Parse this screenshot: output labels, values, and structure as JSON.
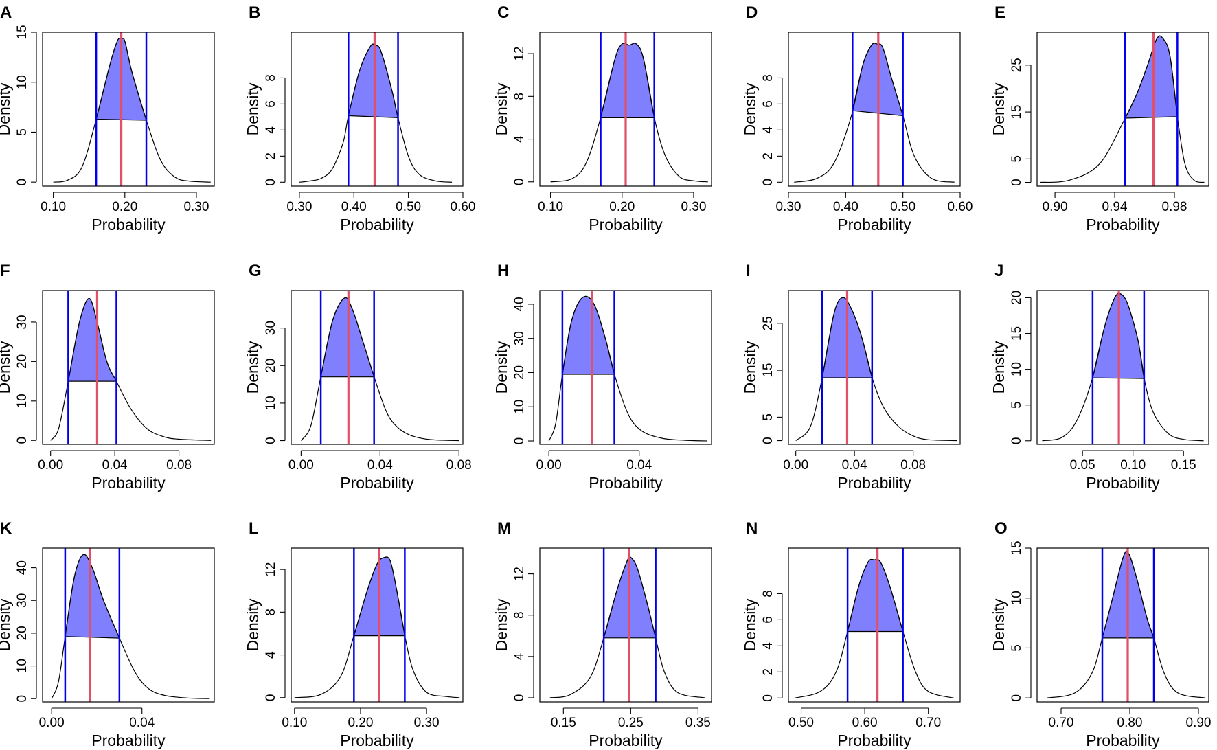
{
  "chart_data": [
    {
      "panel": "A",
      "type": "area",
      "xlabel": "Probability",
      "ylabel": "Density",
      "xlim": [
        0.085,
        0.325
      ],
      "ylim": [
        -0.4,
        15
      ],
      "xticks": [
        0.1,
        0.2,
        0.3
      ],
      "xtick_labels": [
        "0.10",
        "0.20",
        "0.30"
      ],
      "yticks": [
        0,
        5,
        10,
        15
      ],
      "ytick_labels": [
        "0",
        "5",
        "10",
        "15"
      ],
      "x": [
        0.1,
        0.12,
        0.14,
        0.16,
        0.18,
        0.19,
        0.195,
        0.2,
        0.21,
        0.23,
        0.25,
        0.27,
        0.29,
        0.32
      ],
      "y": [
        0,
        0.2,
        1.5,
        6.3,
        12,
        14.2,
        14.3,
        14.1,
        11,
        6.2,
        2.2,
        0.5,
        0.1,
        0
      ],
      "hpd": [
        0.16,
        0.23
      ],
      "mean": 0.195
    },
    {
      "panel": "B",
      "type": "area",
      "xlabel": "Probability",
      "ylabel": "Density",
      "xlim": [
        0.285,
        0.6
      ],
      "ylim": [
        -0.3,
        11.5
      ],
      "xticks": [
        0.3,
        0.4,
        0.5,
        0.6
      ],
      "xtick_labels": [
        "0.30",
        "0.40",
        "0.50",
        "0.60"
      ],
      "yticks": [
        0,
        2,
        4,
        6,
        8
      ],
      "ytick_labels": [
        "0",
        "2",
        "4",
        "6",
        "8"
      ],
      "x": [
        0.3,
        0.32,
        0.34,
        0.36,
        0.38,
        0.39,
        0.41,
        0.43,
        0.44,
        0.45,
        0.47,
        0.48,
        0.5,
        0.52,
        0.55,
        0.58
      ],
      "y": [
        0,
        0.1,
        0.3,
        1,
        3,
        5.1,
        8.5,
        10.4,
        10.5,
        10,
        7,
        5.1,
        2,
        0.6,
        0.1,
        0
      ],
      "hpd": [
        0.39,
        0.481
      ],
      "mean": 0.438
    },
    {
      "panel": "C",
      "type": "area",
      "xlabel": "Probability",
      "ylabel": "Density",
      "xlim": [
        0.085,
        0.325
      ],
      "ylim": [
        -0.4,
        14
      ],
      "xticks": [
        0.1,
        0.2,
        0.3
      ],
      "xtick_labels": [
        "0.10",
        "0.20",
        "0.30"
      ],
      "yticks": [
        0,
        4,
        8,
        12
      ],
      "ytick_labels": [
        "0",
        "4",
        "8",
        "12"
      ],
      "x": [
        0.1,
        0.13,
        0.15,
        0.17,
        0.19,
        0.2,
        0.21,
        0.22,
        0.23,
        0.245,
        0.26,
        0.28,
        0.3,
        0.32
      ],
      "y": [
        0,
        0.3,
        1.8,
        6,
        11.5,
        12.9,
        12.8,
        12.9,
        11.5,
        6,
        2.5,
        0.5,
        0.1,
        0
      ],
      "hpd": [
        0.17,
        0.245
      ],
      "mean": 0.205
    },
    {
      "panel": "D",
      "type": "area",
      "xlabel": "Probability",
      "ylabel": "Density",
      "xlim": [
        0.3,
        0.6
      ],
      "ylim": [
        -0.3,
        11.5
      ],
      "xticks": [
        0.3,
        0.4,
        0.5,
        0.6
      ],
      "xtick_labels": [
        "0.30",
        "0.40",
        "0.50",
        "0.60"
      ],
      "yticks": [
        0,
        2,
        4,
        6,
        8
      ],
      "ytick_labels": [
        "0",
        "2",
        "4",
        "6",
        "8"
      ],
      "x": [
        0.31,
        0.35,
        0.38,
        0.41,
        0.43,
        0.445,
        0.455,
        0.465,
        0.48,
        0.5,
        0.52,
        0.55,
        0.59
      ],
      "y": [
        0,
        0.3,
        1.5,
        5.1,
        9,
        10.5,
        10.6,
        10.3,
        8,
        5.1,
        2,
        0.3,
        0
      ],
      "hpd": [
        0.412,
        0.5
      ],
      "mean": 0.457
    },
    {
      "panel": "E",
      "type": "area",
      "xlabel": "Probability",
      "ylabel": "Density",
      "xlim": [
        0.888,
        1.003
      ],
      "ylim": [
        -0.8,
        32
      ],
      "xticks": [
        0.9,
        0.94,
        0.98
      ],
      "xtick_labels": [
        "0.90",
        "0.94",
        "0.98"
      ],
      "yticks": [
        0,
        5,
        15,
        25
      ],
      "ytick_labels": [
        "0",
        "5",
        "15",
        "25"
      ],
      "x": [
        0.89,
        0.91,
        0.93,
        0.947,
        0.955,
        0.962,
        0.968,
        0.972,
        0.977,
        0.982,
        0.987,
        0.993,
        1.0
      ],
      "y": [
        0,
        0.5,
        4,
        13.7,
        19,
        25,
        30.5,
        30.8,
        27,
        14,
        4,
        0.5,
        0
      ],
      "hpd": [
        0.947,
        0.982
      ],
      "mean": 0.966
    },
    {
      "panel": "F",
      "type": "area",
      "xlabel": "Probability",
      "ylabel": "Density",
      "xlim": [
        -0.005,
        0.102
      ],
      "ylim": [
        -1,
        38
      ],
      "xticks": [
        0.0,
        0.04,
        0.08
      ],
      "xtick_labels": [
        "0.00",
        "0.04",
        "0.08"
      ],
      "yticks": [
        0,
        10,
        20,
        30
      ],
      "ytick_labels": [
        "0",
        "10",
        "20",
        "30"
      ],
      "x": [
        0.0,
        0.005,
        0.011,
        0.018,
        0.024,
        0.029,
        0.035,
        0.041,
        0.05,
        0.06,
        0.07,
        0.08,
        0.1
      ],
      "y": [
        0,
        3,
        15,
        30,
        36,
        30,
        20,
        15,
        8,
        3,
        1,
        0.3,
        0
      ],
      "hpd": [
        0.011,
        0.041
      ],
      "mean": 0.029
    },
    {
      "panel": "G",
      "type": "area",
      "xlabel": "Probability",
      "ylabel": "Density",
      "xlim": [
        -0.005,
        0.082
      ],
      "ylim": [
        -1,
        40
      ],
      "xticks": [
        0.0,
        0.04,
        0.08
      ],
      "xtick_labels": [
        "0.00",
        "0.04",
        "0.08"
      ],
      "yticks": [
        0,
        10,
        20,
        30
      ],
      "ytick_labels": [
        "0",
        "10",
        "20",
        "30"
      ],
      "x": [
        0.0,
        0.005,
        0.01,
        0.016,
        0.022,
        0.026,
        0.031,
        0.037,
        0.043,
        0.048,
        0.055,
        0.065,
        0.08
      ],
      "y": [
        0,
        4,
        17,
        32,
        38,
        35,
        27,
        17,
        8,
        4,
        1.5,
        0.3,
        0
      ],
      "hpd": [
        0.01,
        0.037
      ],
      "mean": 0.024
    },
    {
      "panel": "H",
      "type": "area",
      "xlabel": "Probability",
      "ylabel": "Density",
      "xlim": [
        -0.004,
        0.072
      ],
      "ylim": [
        -1,
        44
      ],
      "xticks": [
        0.0,
        0.04
      ],
      "xtick_labels": [
        "0.00",
        "0.04"
      ],
      "yticks": [
        0,
        10,
        20,
        30,
        40
      ],
      "ytick_labels": [
        "0",
        "10",
        "20",
        "30",
        "40"
      ],
      "x": [
        0.0,
        0.003,
        0.006,
        0.01,
        0.015,
        0.02,
        0.025,
        0.029,
        0.035,
        0.041,
        0.05,
        0.06,
        0.07
      ],
      "y": [
        0,
        5,
        19.5,
        35,
        42,
        40,
        30,
        19.5,
        8,
        3,
        0.8,
        0.2,
        0
      ],
      "hpd": [
        0.006,
        0.029
      ],
      "mean": 0.019
    },
    {
      "panel": "I",
      "type": "area",
      "xlabel": "Probability",
      "ylabel": "Density",
      "xlim": [
        -0.005,
        0.112
      ],
      "ylim": [
        -0.8,
        32
      ],
      "xticks": [
        0.0,
        0.04,
        0.08
      ],
      "xtick_labels": [
        "0.00",
        "0.04",
        "0.08"
      ],
      "yticks": [
        0,
        5,
        15,
        25
      ],
      "ytick_labels": [
        "0",
        "5",
        "15",
        "25"
      ],
      "x": [
        0.0,
        0.01,
        0.018,
        0.026,
        0.032,
        0.038,
        0.045,
        0.052,
        0.06,
        0.07,
        0.08,
        0.09,
        0.11
      ],
      "y": [
        0,
        3,
        13.4,
        27,
        30.5,
        28,
        22,
        13.4,
        7,
        3,
        1,
        0.2,
        0
      ],
      "hpd": [
        0.018,
        0.052
      ],
      "mean": 0.035
    },
    {
      "panel": "J",
      "type": "area",
      "xlabel": "Probability",
      "ylabel": "Density",
      "xlim": [
        0.005,
        0.175
      ],
      "ylim": [
        -0.5,
        21
      ],
      "xticks": [
        0.05,
        0.1,
        0.15
      ],
      "xtick_labels": [
        "0.05",
        "0.10",
        "0.15"
      ],
      "yticks": [
        0,
        5,
        10,
        15,
        20
      ],
      "ytick_labels": [
        "0",
        "5",
        "10",
        "15",
        "20"
      ],
      "x": [
        0.01,
        0.03,
        0.045,
        0.06,
        0.072,
        0.082,
        0.088,
        0.095,
        0.105,
        0.111,
        0.12,
        0.135,
        0.15,
        0.17
      ],
      "y": [
        0,
        0.5,
        3,
        8.8,
        16,
        20,
        20.5,
        19,
        14,
        8.7,
        4,
        1,
        0.2,
        0
      ],
      "hpd": [
        0.06,
        0.111
      ],
      "mean": 0.086
    },
    {
      "panel": "K",
      "type": "area",
      "xlabel": "Probability",
      "ylabel": "Density",
      "xlim": [
        -0.004,
        0.072
      ],
      "ylim": [
        -1,
        46
      ],
      "xticks": [
        0.0,
        0.04
      ],
      "xtick_labels": [
        "0.00",
        "0.04"
      ],
      "yticks": [
        0,
        10,
        20,
        30,
        40
      ],
      "ytick_labels": [
        "0",
        "10",
        "20",
        "30",
        "40"
      ],
      "x": [
        0.0,
        0.003,
        0.006,
        0.01,
        0.014,
        0.018,
        0.023,
        0.03,
        0.037,
        0.043,
        0.05,
        0.06,
        0.07
      ],
      "y": [
        0,
        5,
        19,
        37,
        44,
        40,
        30,
        18.5,
        8,
        3,
        1,
        0.2,
        0
      ],
      "hpd": [
        0.006,
        0.03
      ],
      "mean": 0.017
    },
    {
      "panel": "L",
      "type": "area",
      "xlabel": "Probability",
      "ylabel": "Density",
      "xlim": [
        0.095,
        0.355
      ],
      "ylim": [
        -0.4,
        14
      ],
      "xticks": [
        0.1,
        0.2,
        0.3
      ],
      "xtick_labels": [
        "0.10",
        "0.20",
        "0.30"
      ],
      "yticks": [
        0,
        4,
        8,
        12
      ],
      "ytick_labels": [
        "0",
        "4",
        "8",
        "12"
      ],
      "x": [
        0.1,
        0.14,
        0.17,
        0.19,
        0.21,
        0.225,
        0.235,
        0.245,
        0.255,
        0.267,
        0.28,
        0.3,
        0.33,
        0.35
      ],
      "y": [
        0,
        0.3,
        2,
        5.8,
        10,
        12.5,
        13.1,
        12.8,
        10,
        5.8,
        2.5,
        0.5,
        0.1,
        0
      ],
      "hpd": [
        0.19,
        0.267
      ],
      "mean": 0.228
    },
    {
      "panel": "M",
      "type": "area",
      "xlabel": "Probability",
      "ylabel": "Density",
      "xlim": [
        0.115,
        0.37
      ],
      "ylim": [
        -0.4,
        14.5
      ],
      "xticks": [
        0.15,
        0.25,
        0.35
      ],
      "xtick_labels": [
        "0.15",
        "0.25",
        "0.35"
      ],
      "yticks": [
        0,
        4,
        8,
        12
      ],
      "ytick_labels": [
        "0",
        "4",
        "8",
        "12"
      ],
      "x": [
        0.13,
        0.16,
        0.19,
        0.21,
        0.23,
        0.245,
        0.25,
        0.26,
        0.275,
        0.287,
        0.3,
        0.32,
        0.36
      ],
      "y": [
        0,
        0.3,
        2,
        5.8,
        10.5,
        13.3,
        13.6,
        12.5,
        9,
        5.8,
        2.5,
        0.5,
        0
      ],
      "hpd": [
        0.21,
        0.287
      ],
      "mean": 0.248
    },
    {
      "panel": "N",
      "type": "area",
      "xlabel": "Probability",
      "ylabel": "Density",
      "xlim": [
        0.48,
        0.75
      ],
      "ylim": [
        -0.3,
        11.5
      ],
      "xticks": [
        0.5,
        0.6,
        0.7
      ],
      "xtick_labels": [
        "0.50",
        "0.60",
        "0.70"
      ],
      "yticks": [
        0,
        2,
        4,
        6,
        8
      ],
      "ytick_labels": [
        "0",
        "2",
        "4",
        "6",
        "8"
      ],
      "x": [
        0.49,
        0.53,
        0.555,
        0.573,
        0.59,
        0.605,
        0.615,
        0.625,
        0.64,
        0.66,
        0.68,
        0.7,
        0.74
      ],
      "y": [
        0,
        0.5,
        2,
        5.1,
        8.5,
        10.4,
        10.6,
        10.4,
        8.5,
        5.1,
        2,
        0.5,
        0
      ],
      "hpd": [
        0.573,
        0.66
      ],
      "mean": 0.62
    },
    {
      "panel": "O",
      "type": "area",
      "xlabel": "Probability",
      "ylabel": "Density",
      "xlim": [
        0.665,
        0.915
      ],
      "ylim": [
        -0.4,
        15
      ],
      "xticks": [
        0.7,
        0.8,
        0.9
      ],
      "xtick_labels": [
        "0.70",
        "0.80",
        "0.90"
      ],
      "yticks": [
        0,
        5,
        10,
        15
      ],
      "ytick_labels": [
        "0",
        "5",
        "10",
        "15"
      ],
      "x": [
        0.68,
        0.72,
        0.745,
        0.76,
        0.775,
        0.79,
        0.798,
        0.81,
        0.825,
        0.835,
        0.85,
        0.87,
        0.91
      ],
      "y": [
        0,
        0.5,
        2.5,
        6,
        10,
        14,
        14.5,
        12,
        8,
        6,
        2.5,
        0.5,
        0
      ],
      "hpd": [
        0.76,
        0.835
      ],
      "mean": 0.797
    }
  ],
  "colors": {
    "hpd_fill": "#8080ff",
    "hpd_line": "#0000ee",
    "mean_line": "#e05068",
    "curve": "#000000"
  }
}
